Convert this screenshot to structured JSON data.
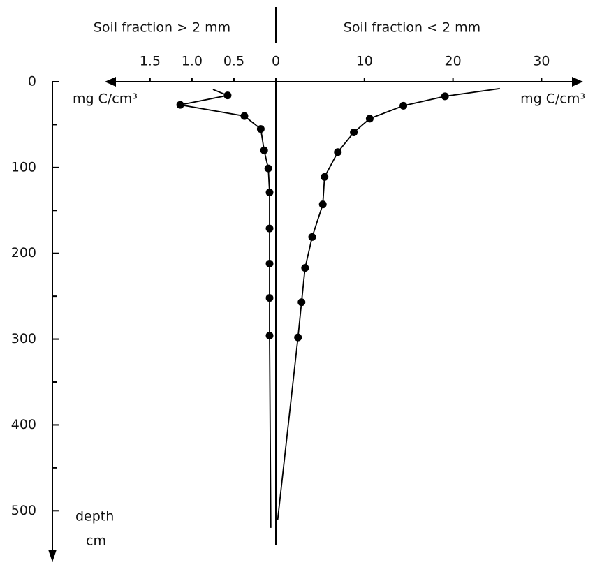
{
  "chart_data": {
    "type": "depth-profile",
    "left_title": "Soil fraction > 2 mm",
    "right_title": "Soil fraction < 2 mm",
    "left_unit": "mg  C/cm³",
    "right_unit": "mg  C/cm³",
    "y_label": "depth",
    "y_unit": "cm",
    "left_xlim": [
      0,
      2.04
    ],
    "left_xticks": [
      1.5,
      {
        "value": 1,
        "label": "1.0"
      },
      0.5
    ],
    "right_xlim": [
      0,
      34.7
    ],
    "right_xticks": [
      0,
      10,
      20,
      30
    ],
    "ylim": [
      0,
      560
    ],
    "yticks": [
      0,
      100,
      200,
      300,
      400,
      500
    ],
    "yticks_minor": [
      50,
      150,
      250,
      350,
      450
    ],
    "color": "#000000",
    "series": [
      {
        "side": "left",
        "kind": "line",
        "values": [
          0.75,
          0.575,
          1.14,
          0.375,
          0.18,
          0.14,
          0.09,
          0.075,
          0.075,
          0.075,
          0.075,
          0.075,
          0.06
        ],
        "depth": [
          9,
          16,
          27,
          40,
          55,
          80,
          101,
          129,
          171,
          212,
          252,
          296,
          520
        ]
      },
      {
        "side": "left",
        "kind": "points",
        "values": [
          0.575,
          1.14,
          0.375,
          0.18,
          0.14,
          0.09,
          0.075,
          0.075,
          0.075,
          0.075,
          0.075
        ],
        "depth": [
          16,
          27,
          40,
          55,
          80,
          101,
          129,
          171,
          212,
          252,
          296
        ]
      },
      {
        "side": "right",
        "kind": "line",
        "values": [
          25.3,
          19.1,
          14.4,
          10.6,
          8.8,
          7.0,
          5.5,
          5.3,
          4.1,
          3.3,
          2.9,
          2.5,
          0.2
        ],
        "depth": [
          8,
          17,
          28,
          43,
          59,
          82,
          111,
          143,
          181,
          217,
          257,
          298,
          511
        ]
      },
      {
        "side": "right",
        "kind": "points",
        "values": [
          19.1,
          14.4,
          10.6,
          8.8,
          7.0,
          5.5,
          5.3,
          4.1,
          3.3,
          2.9,
          2.5
        ],
        "depth": [
          17,
          28,
          43,
          59,
          82,
          111,
          143,
          181,
          217,
          257,
          298
        ]
      }
    ]
  }
}
